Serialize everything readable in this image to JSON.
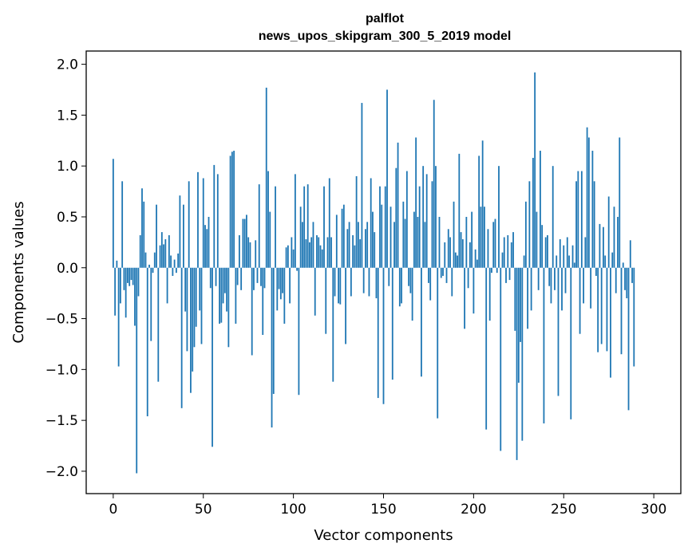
{
  "chart_data": {
    "type": "bar",
    "title": "palflot",
    "subtitle": "news_upos_skipgram_300_5_2019 model",
    "xlabel": "Vector components",
    "ylabel": "Components values",
    "xlim": [
      -15,
      315
    ],
    "ylim": [
      -2.22,
      2.13
    ],
    "xticks": [
      0,
      50,
      100,
      150,
      200,
      250,
      300
    ],
    "yticks": [
      -2.0,
      -1.5,
      -1.0,
      -0.5,
      0.0,
      0.5,
      1.0,
      1.5,
      2.0
    ],
    "ytick_labels": [
      "−2.0",
      "−1.5",
      "−1.0",
      "−0.5",
      "0.0",
      "0.5",
      "1.0",
      "1.5",
      "2.0"
    ],
    "bar_color": "#1f77b4",
    "grid": false,
    "values": [
      1.07,
      -0.47,
      0.07,
      -0.97,
      -0.35,
      0.85,
      -0.22,
      -0.49,
      -0.15,
      -0.18,
      -0.12,
      -0.17,
      -0.57,
      -2.02,
      -0.28,
      0.32,
      0.78,
      0.65,
      0.15,
      -1.46,
      0.03,
      -0.72,
      -0.05,
      0.15,
      0.62,
      -1.12,
      0.22,
      0.35,
      0.23,
      0.28,
      -0.35,
      0.32,
      0.12,
      -0.08,
      0.08,
      -0.05,
      0.14,
      0.71,
      -1.38,
      0.62,
      -0.43,
      -0.82,
      0.85,
      -1.23,
      -1.02,
      -0.78,
      -0.58,
      0.94,
      -0.42,
      -0.75,
      0.88,
      0.42,
      0.38,
      0.5,
      -0.2,
      -1.76,
      1.01,
      -0.18,
      0.92,
      -0.55,
      -0.54,
      -0.35,
      -0.25,
      -0.43,
      -0.78,
      1.1,
      1.14,
      1.15,
      -0.55,
      -0.17,
      0.32,
      -0.22,
      0.48,
      0.48,
      0.52,
      0.3,
      0.25,
      -0.86,
      -0.22,
      0.27,
      -0.15,
      0.82,
      -0.18,
      -0.66,
      -0.2,
      1.77,
      0.95,
      0.55,
      -1.57,
      -1.24,
      0.8,
      -0.42,
      -0.21,
      -0.31,
      -0.25,
      -0.55,
      0.2,
      0.22,
      -0.35,
      0.3,
      0.18,
      0.92,
      -0.03,
      -1.25,
      0.6,
      0.45,
      0.8,
      0.28,
      0.82,
      0.25,
      0.3,
      0.45,
      -0.47,
      0.32,
      0.3,
      0.22,
      0.18,
      0.8,
      -0.65,
      0.3,
      0.88,
      0.3,
      -1.12,
      -0.28,
      0.52,
      -0.35,
      -0.36,
      0.58,
      0.62,
      -0.75,
      0.38,
      0.45,
      -0.28,
      0.32,
      0.22,
      0.9,
      0.45,
      0.28,
      1.62,
      -0.25,
      0.38,
      0.45,
      -0.28,
      0.88,
      0.55,
      0.35,
      -0.3,
      -1.28,
      0.8,
      0.62,
      -1.34,
      0.8,
      1.75,
      -0.18,
      0.6,
      -1.1,
      0.45,
      0.98,
      1.23,
      -0.38,
      -0.35,
      0.65,
      0.48,
      0.95,
      -0.18,
      -0.25,
      -0.52,
      0.55,
      1.28,
      0.5,
      0.8,
      -1.07,
      1.0,
      0.45,
      0.92,
      -0.15,
      -0.32,
      0.85,
      1.65,
      1.0,
      -1.48,
      0.5,
      -0.1,
      -0.08,
      0.25,
      -0.15,
      0.38,
      0.3,
      -0.28,
      0.65,
      0.15,
      0.12,
      1.12,
      0.35,
      0.28,
      -0.6,
      0.5,
      -0.2,
      0.25,
      0.55,
      -0.45,
      0.18,
      0.08,
      1.1,
      0.6,
      1.25,
      0.6,
      -1.59,
      0.38,
      -0.52,
      -0.05,
      0.45,
      0.48,
      -0.05,
      1.0,
      -1.8,
      0.15,
      0.3,
      -0.15,
      0.32,
      -0.12,
      0.25,
      0.35,
      -0.62,
      -1.89,
      -1.13,
      -0.73,
      -1.7,
      0.12,
      0.65,
      -0.6,
      0.85,
      -0.42,
      1.08,
      1.92,
      0.55,
      -0.22,
      1.15,
      0.42,
      -1.53,
      0.3,
      0.32,
      -0.18,
      -0.35,
      1.0,
      -0.22,
      0.12,
      -1.26,
      0.28,
      -0.42,
      0.22,
      -0.25,
      0.3,
      0.12,
      -1.49,
      0.22,
      0.05,
      0.85,
      0.95,
      -0.65,
      0.95,
      -0.35,
      0.3,
      1.38,
      1.28,
      -0.4,
      1.15,
      0.85,
      -0.08,
      -0.83,
      0.43,
      -0.75,
      0.4,
      0.12,
      -0.82,
      0.7,
      -1.08,
      0.15,
      0.6,
      -0.25,
      0.5,
      1.28,
      -0.85,
      0.05,
      -0.22,
      -0.3,
      -1.4,
      0.27,
      -0.15,
      -0.97
    ]
  }
}
